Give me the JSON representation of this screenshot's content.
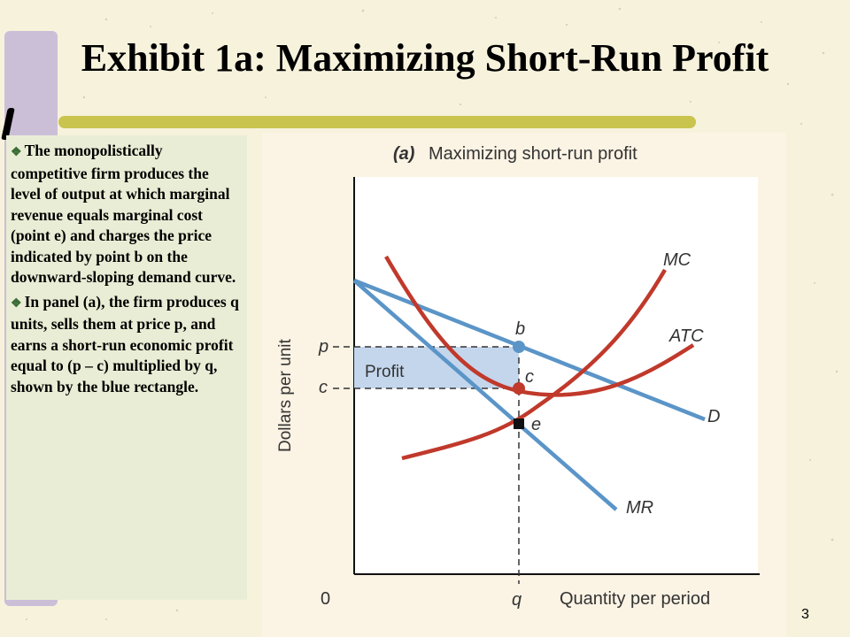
{
  "slide": {
    "title": "Exhibit 1a: Maximizing Short-Run Profit",
    "slide_number": "3",
    "bullets": [
      "The monopolistically competitive firm produces the level of output at which marginal revenue equals marginal cost (point e) and charges the price indicated by point b on the downward-sloping demand curve.",
      "In panel (a), the firm produces q units, sells them at price p, and earns a short-run economic profit equal to (p – c) multiplied by q, shown by the blue rectangle."
    ]
  },
  "diagram": {
    "panel_label": "(a)",
    "panel_title": "Maximizing short-run profit",
    "y_axis_label": "Dollars per unit",
    "x_axis_label": "Quantity per period",
    "origin_label": "0",
    "curves": {
      "mc": "MC",
      "atc": "ATC",
      "demand": "D",
      "mr": "MR"
    },
    "points": {
      "b": "b",
      "c": "c",
      "e": "e"
    },
    "axis_marks": {
      "p": "p",
      "c": "c",
      "q": "q"
    },
    "profit_label": "Profit",
    "colors": {
      "cost_curves": "#c0392b",
      "revenue_curves": "#5b95c8",
      "profit_fill": "#c4d6ec",
      "point_b": "#5b95c8",
      "point_c": "#c0392b",
      "point_e": "#111111"
    }
  }
}
